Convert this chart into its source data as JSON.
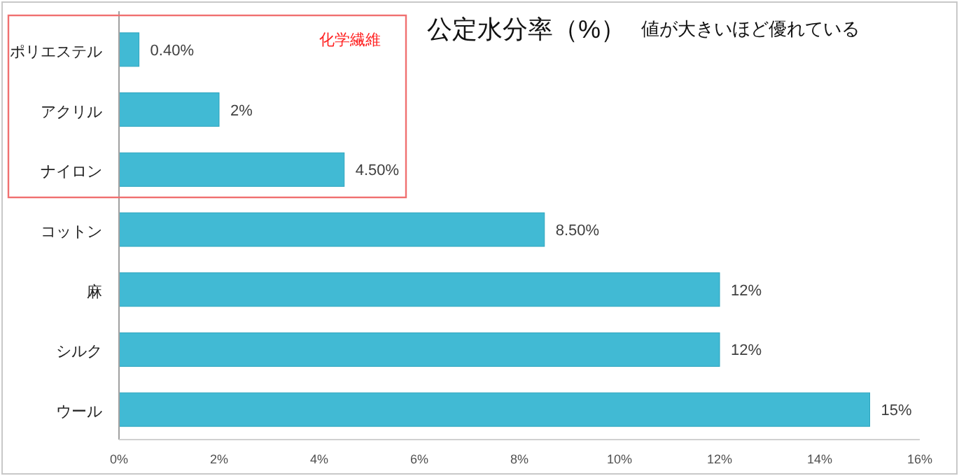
{
  "chart_data": {
    "type": "bar",
    "orientation": "horizontal",
    "title": "公定水分率（%）",
    "subtitle": "値が大きいほど優れている",
    "categories": [
      "ポリエステル",
      "アクリル",
      "ナイロン",
      "コットン",
      "麻",
      "シルク",
      "ウール"
    ],
    "values": [
      0.4,
      2,
      4.5,
      8.5,
      12,
      12,
      15
    ],
    "value_labels": [
      "0.40%",
      "2%",
      "4.50%",
      "8.50%",
      "12%",
      "12%",
      "15%"
    ],
    "color": "#41bad4",
    "xlim": [
      0,
      16
    ],
    "xticks": [
      {
        "value": 0,
        "label": "0%"
      },
      {
        "value": 2,
        "label": "2%"
      },
      {
        "value": 4,
        "label": "4%"
      },
      {
        "value": 6,
        "label": "6%"
      },
      {
        "value": 8,
        "label": "8%"
      },
      {
        "value": 10,
        "label": "10%"
      },
      {
        "value": 12,
        "label": "12%"
      },
      {
        "value": 14,
        "label": "14%"
      },
      {
        "value": 16,
        "label": "16%"
      }
    ],
    "annotations": [
      "化学繊維"
    ],
    "grid": false
  }
}
